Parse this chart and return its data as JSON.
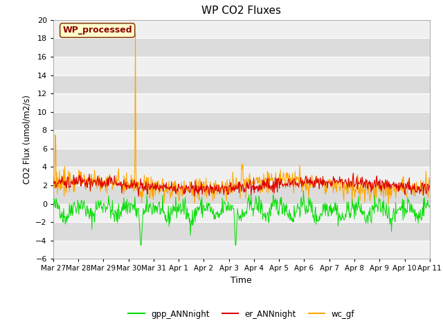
{
  "title": "WP CO2 Fluxes",
  "xlabel": "Time",
  "ylabel": "CO2 Flux (umol/m2/s)",
  "ylim": [
    -6,
    20
  ],
  "yticks": [
    -6,
    -4,
    -2,
    0,
    2,
    4,
    6,
    8,
    10,
    12,
    14,
    16,
    18,
    20
  ],
  "annotation_text": "WP_processed",
  "annotation_color": "#8B0000",
  "annotation_bg": "#FFFFCC",
  "annotation_border": "#8B4513",
  "plot_bg_light": "#F0F0F0",
  "plot_bg_dark": "#DCDCDC",
  "fig_bg": "#FFFFFF",
  "line_colors": {
    "gpp": "#00DD00",
    "er": "#DD0000",
    "wc": "#FFA500"
  },
  "legend_labels": [
    "gpp_ANNnight",
    "er_ANNnight",
    "wc_gf"
  ],
  "xtick_labels": [
    "Mar 27",
    "Mar 28",
    "Mar 29",
    "Mar 30",
    "Mar 31",
    "Apr 1",
    "Apr 2",
    "Apr 3",
    "Apr 4",
    "Apr 5",
    "Apr 6",
    "Apr 7",
    "Apr 8",
    "Apr 9",
    "Apr 10",
    "Apr 11"
  ],
  "xtick_positions": [
    0,
    1,
    2,
    3,
    4,
    5,
    6,
    7,
    8,
    9,
    10,
    11,
    12,
    13,
    14,
    15
  ]
}
